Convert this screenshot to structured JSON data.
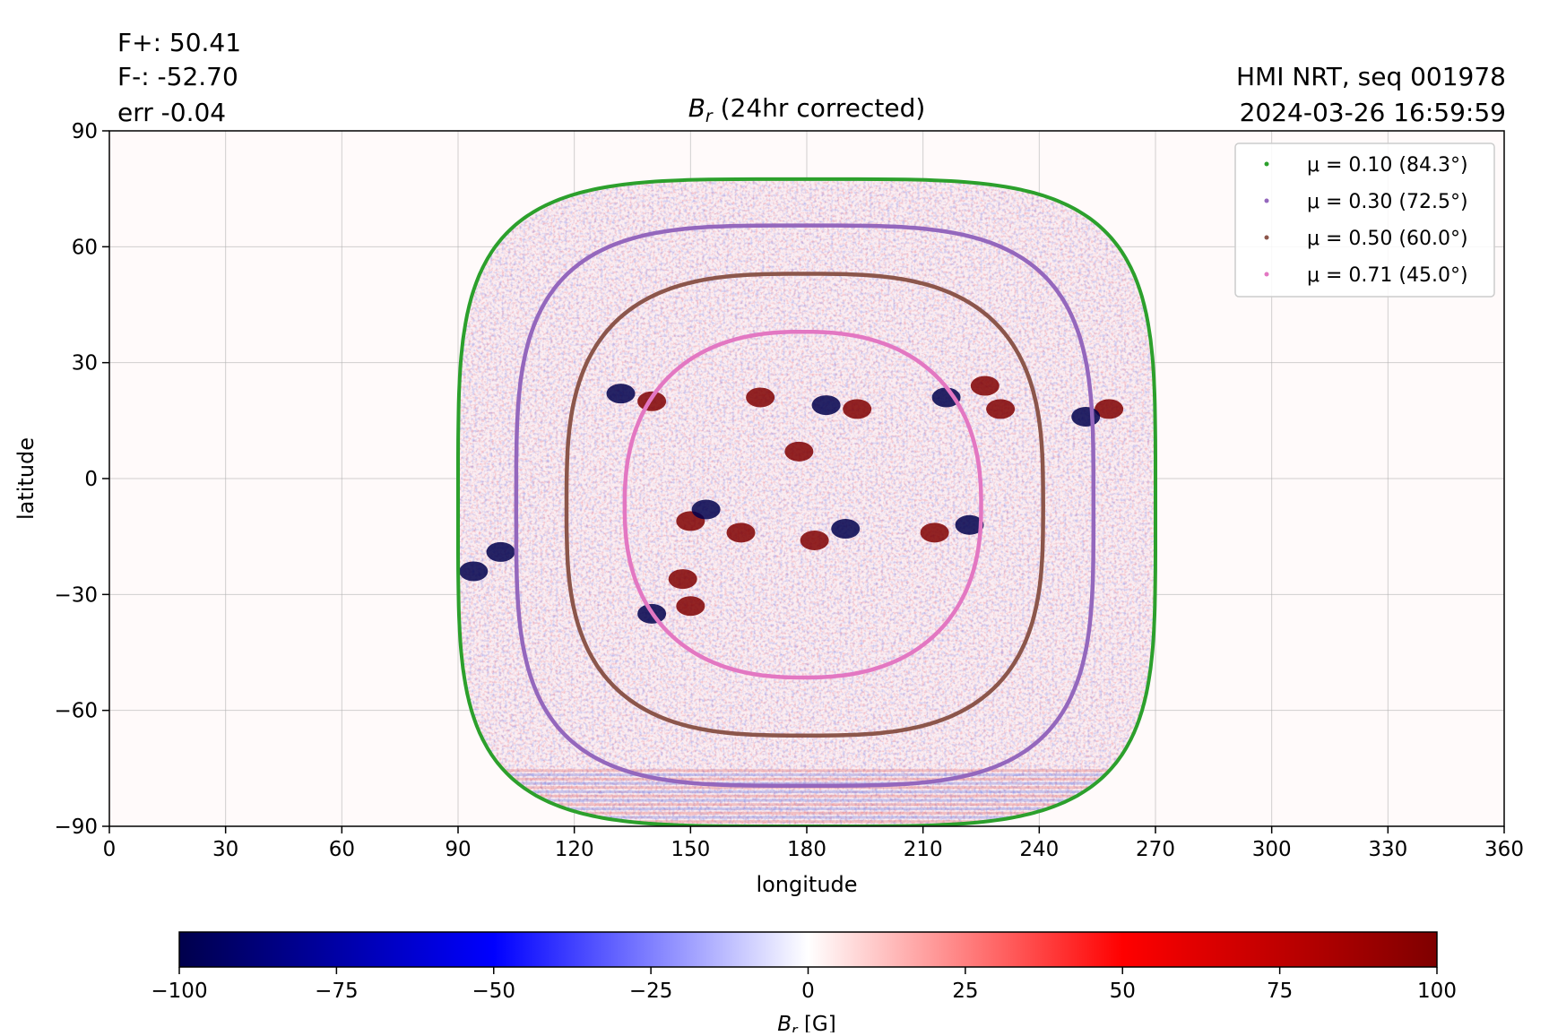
{
  "header": {
    "flux_pos": "F+: 50.41",
    "flux_neg": "F-: -52.70",
    "flux_err": "err -0.04",
    "instrument": "HMI NRT, seq 001978",
    "timestamp": "2024-03-26 16:59:59"
  },
  "colors": {
    "mu_010": "#2ca02c",
    "mu_030": "#9467bd",
    "mu_050": "#8c564b",
    "mu_071": "#e377c2",
    "negative": "#00004c",
    "positive": "#7f0000",
    "zero": "#ffffff"
  },
  "chart_data": [
    {
      "type": "heatmap",
      "title": "(24hr corrected)",
      "title_symbol": "B",
      "title_subscript": "r",
      "xlabel": "longitude",
      "ylabel": "latitude",
      "xlim": [
        0,
        360
      ],
      "ylim": [
        -90,
        90
      ],
      "xticks": [
        "0",
        "30",
        "60",
        "90",
        "120",
        "150",
        "180",
        "210",
        "240",
        "270",
        "300",
        "330",
        "360"
      ],
      "yticks": [
        "90",
        "60",
        "30",
        "0",
        "−30",
        "−60",
        "−90"
      ],
      "grid": true,
      "legend_position": "top-right",
      "disk_center": [
        180,
        -7
      ],
      "series": [
        {
          "name": "μ = 0.10 (84.3°)",
          "mu": 0.1,
          "angle_deg": 84.3,
          "lon_range": [
            90,
            270
          ],
          "lat_range": [
            -90,
            77.5
          ]
        },
        {
          "name": "μ = 0.30 (72.5°)",
          "mu": 0.3,
          "angle_deg": 72.5,
          "lon_range": [
            105,
            254
          ],
          "lat_range": [
            -79.5,
            65.5
          ]
        },
        {
          "name": "μ = 0.50 (60.0°)",
          "mu": 0.5,
          "angle_deg": 60.0,
          "lon_range": [
            118,
            241
          ],
          "lat_range": [
            -66.5,
            53
          ]
        },
        {
          "name": "μ = 0.71 (45.0°)",
          "mu": 0.71,
          "angle_deg": 45.0,
          "lon_range": [
            133,
            225
          ],
          "lat_range": [
            -51.5,
            38
          ]
        }
      ],
      "active_regions": [
        {
          "lon": 140,
          "lat": 20,
          "polarity": "positive"
        },
        {
          "lon": 132,
          "lat": 22,
          "polarity": "negative"
        },
        {
          "lon": 168,
          "lat": 21,
          "polarity": "positive"
        },
        {
          "lon": 185,
          "lat": 19,
          "polarity": "negative"
        },
        {
          "lon": 193,
          "lat": 18,
          "polarity": "positive"
        },
        {
          "lon": 216,
          "lat": 21,
          "polarity": "negative"
        },
        {
          "lon": 230,
          "lat": 18,
          "polarity": "positive"
        },
        {
          "lon": 226,
          "lat": 24,
          "polarity": "positive"
        },
        {
          "lon": 258,
          "lat": 18,
          "polarity": "positive"
        },
        {
          "lon": 252,
          "lat": 16,
          "polarity": "negative"
        },
        {
          "lon": 178,
          "lat": 7,
          "polarity": "positive"
        },
        {
          "lon": 213,
          "lat": -14,
          "polarity": "positive"
        },
        {
          "lon": 222,
          "lat": -12,
          "polarity": "negative"
        },
        {
          "lon": 190,
          "lat": -13,
          "polarity": "negative"
        },
        {
          "lon": 182,
          "lat": -16,
          "polarity": "positive"
        },
        {
          "lon": 150,
          "lat": -11,
          "polarity": "positive"
        },
        {
          "lon": 163,
          "lat": -14,
          "polarity": "positive"
        },
        {
          "lon": 154,
          "lat": -8,
          "polarity": "negative"
        },
        {
          "lon": 150,
          "lat": -33,
          "polarity": "positive"
        },
        {
          "lon": 148,
          "lat": -26,
          "polarity": "positive"
        },
        {
          "lon": 101,
          "lat": -19,
          "polarity": "negative"
        },
        {
          "lon": 94,
          "lat": -24,
          "polarity": "negative"
        },
        {
          "lon": 140,
          "lat": -35,
          "polarity": "negative"
        }
      ]
    },
    {
      "type": "colorbar",
      "range": [
        -100,
        100
      ],
      "ticks": [
        "−100",
        "−75",
        "−50",
        "−25",
        "0",
        "25",
        "50",
        "75",
        "100"
      ],
      "label_symbol": "B",
      "label_subscript": "r",
      "label_unit": "[G]"
    }
  ]
}
